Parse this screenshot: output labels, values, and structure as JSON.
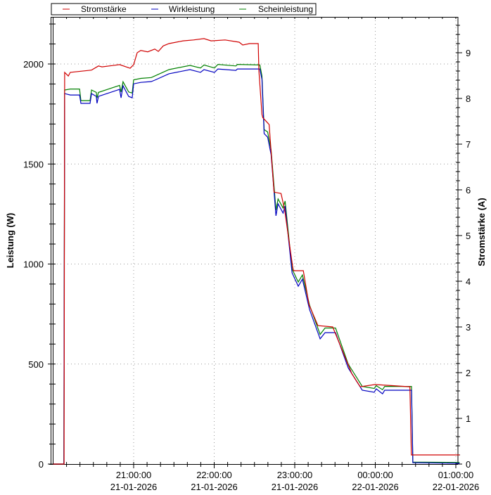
{
  "chart_data": {
    "type": "line",
    "title": "",
    "legend": {
      "placement": "top",
      "entries": [
        "Stromstärke",
        "Wirkleistung",
        "Scheinleistung"
      ]
    },
    "xlabel": "",
    "ylabel": "Leistung (W)",
    "y2label": "Stromstärke (A)",
    "x_unit": "minutes since 20:00:00 21-01-2026",
    "xlim": [
      0,
      303
    ],
    "ylim": [
      0,
      2235
    ],
    "y2lim": [
      0,
      9.78
    ],
    "grid": true,
    "x_ticks": [
      {
        "minute": 60,
        "time": "21:00:00",
        "date": "21-01-2026"
      },
      {
        "minute": 120,
        "time": "22:00:00",
        "date": "21-01-2026"
      },
      {
        "minute": 180,
        "time": "23:00:00",
        "date": "21-01-2026"
      },
      {
        "minute": 240,
        "time": "00:00:00",
        "date": "22-01-2026"
      },
      {
        "minute": 300,
        "time": "01:00:00",
        "date": "22-01-2026"
      }
    ],
    "y_ticks": [
      "0",
      "500",
      "1000",
      "1500",
      "2000"
    ],
    "y2_ticks": [
      "0",
      "1",
      "2",
      "3",
      "4",
      "5",
      "6",
      "7",
      "8",
      "9"
    ],
    "series": [
      {
        "name": "Stromstärke",
        "axis": "right",
        "color": "#d00000",
        "x": [
          0,
          8.2,
          8.6,
          11.3,
          12.8,
          28.6,
          33.8,
          36.4,
          44.3,
          49.5,
          57.4,
          60,
          62.6,
          65.3,
          70.5,
          75.7,
          78.4,
          82,
          86.3,
          96.8,
          104.6,
          112.4,
          117.7,
          128.1,
          138.6,
          141.2,
          146.4,
          152.8,
          153.3,
          155.6,
          156.2,
          160.9,
          164.6,
          169.8,
          172.4,
          178.5,
          179.1,
          186.4,
          190.6,
          197.3,
          208.3,
          222.5,
          228.8,
          239.8,
          265.8,
          266.9,
          302.8
        ],
        "values": [
          0,
          0,
          8.57,
          8.49,
          8.57,
          8.62,
          8.71,
          8.69,
          8.72,
          8.74,
          8.66,
          8.74,
          9.0,
          9.05,
          9.02,
          9.08,
          9.03,
          9.15,
          9.2,
          9.26,
          9.28,
          9.31,
          9.26,
          9.28,
          9.23,
          9.17,
          9.2,
          9.2,
          8.62,
          7.65,
          7.58,
          7.43,
          5.95,
          5.92,
          5.58,
          4.31,
          4.23,
          4.23,
          3.49,
          3.03,
          3.0,
          1.98,
          1.69,
          1.74,
          1.69,
          0.2,
          0.2
        ]
      },
      {
        "name": "Wirkleistung",
        "axis": "left",
        "color": "#0000c0",
        "x": [
          0,
          8.0,
          8.6,
          12.8,
          19.7,
          20.7,
          27.5,
          28.6,
          32.2,
          32.7,
          33.8,
          49.5,
          50.6,
          52.1,
          56.3,
          58.9,
          60,
          65.3,
          73.1,
          75.7,
          86.3,
          102,
          109.8,
          112.4,
          120.2,
          122.8,
          136.2,
          137.3,
          154,
          155.6,
          157.2,
          159.8,
          162.4,
          166,
          167.6,
          171.3,
          172.8,
          178,
          182.6,
          185.7,
          191,
          198.9,
          202.6,
          210.4,
          219.8,
          230.3,
          239.2,
          240.7,
          245.4,
          247,
          267,
          268,
          302.8
        ],
        "values": [
          0,
          0,
          1852,
          1845,
          1845,
          1803,
          1803,
          1852,
          1838,
          1803,
          1838,
          1873,
          1831,
          1891,
          1838,
          1831,
          1901,
          1908,
          1912,
          1919,
          1951,
          1972,
          1958,
          1972,
          1958,
          1975,
          1968,
          1975,
          1975,
          1923,
          1652,
          1634,
          1547,
          1241,
          1301,
          1255,
          1290,
          956,
          889,
          924,
          773,
          626,
          657,
          657,
          481,
          369,
          359,
          376,
          351,
          369,
          369,
          7,
          4
        ]
      },
      {
        "name": "Scheinleistung",
        "axis": "left",
        "color": "#008000",
        "x": [
          0,
          8.0,
          8.6,
          12.8,
          19.7,
          20.7,
          27.5,
          28.6,
          32.2,
          32.7,
          33.8,
          49.5,
          50.6,
          52.1,
          56.3,
          58.9,
          60,
          65.3,
          73.1,
          75.7,
          86.3,
          102,
          109.8,
          112.4,
          120.2,
          122.8,
          136.2,
          137.3,
          154,
          155.6,
          157.2,
          159.8,
          162.4,
          166,
          167.6,
          171.3,
          172.8,
          178,
          182.6,
          185.7,
          191,
          198.9,
          202.6,
          210.4,
          219.8,
          230.3,
          239.2,
          240.7,
          245.4,
          247,
          267,
          268,
          302.8
        ],
        "values": [
          0,
          0,
          1870,
          1875,
          1875,
          1817,
          1817,
          1870,
          1858,
          1830,
          1858,
          1893,
          1860,
          1911,
          1860,
          1855,
          1921,
          1928,
          1932,
          1940,
          1972,
          1993,
          1980,
          1995,
          1980,
          1998,
          1990,
          1998,
          1995,
          1940,
          1672,
          1660,
          1570,
          1270,
          1325,
          1280,
          1315,
          975,
          910,
          945,
          795,
          648,
          680,
          680,
          500,
          388,
          378,
          392,
          372,
          388,
          388,
          10,
          8
        ]
      }
    ]
  }
}
